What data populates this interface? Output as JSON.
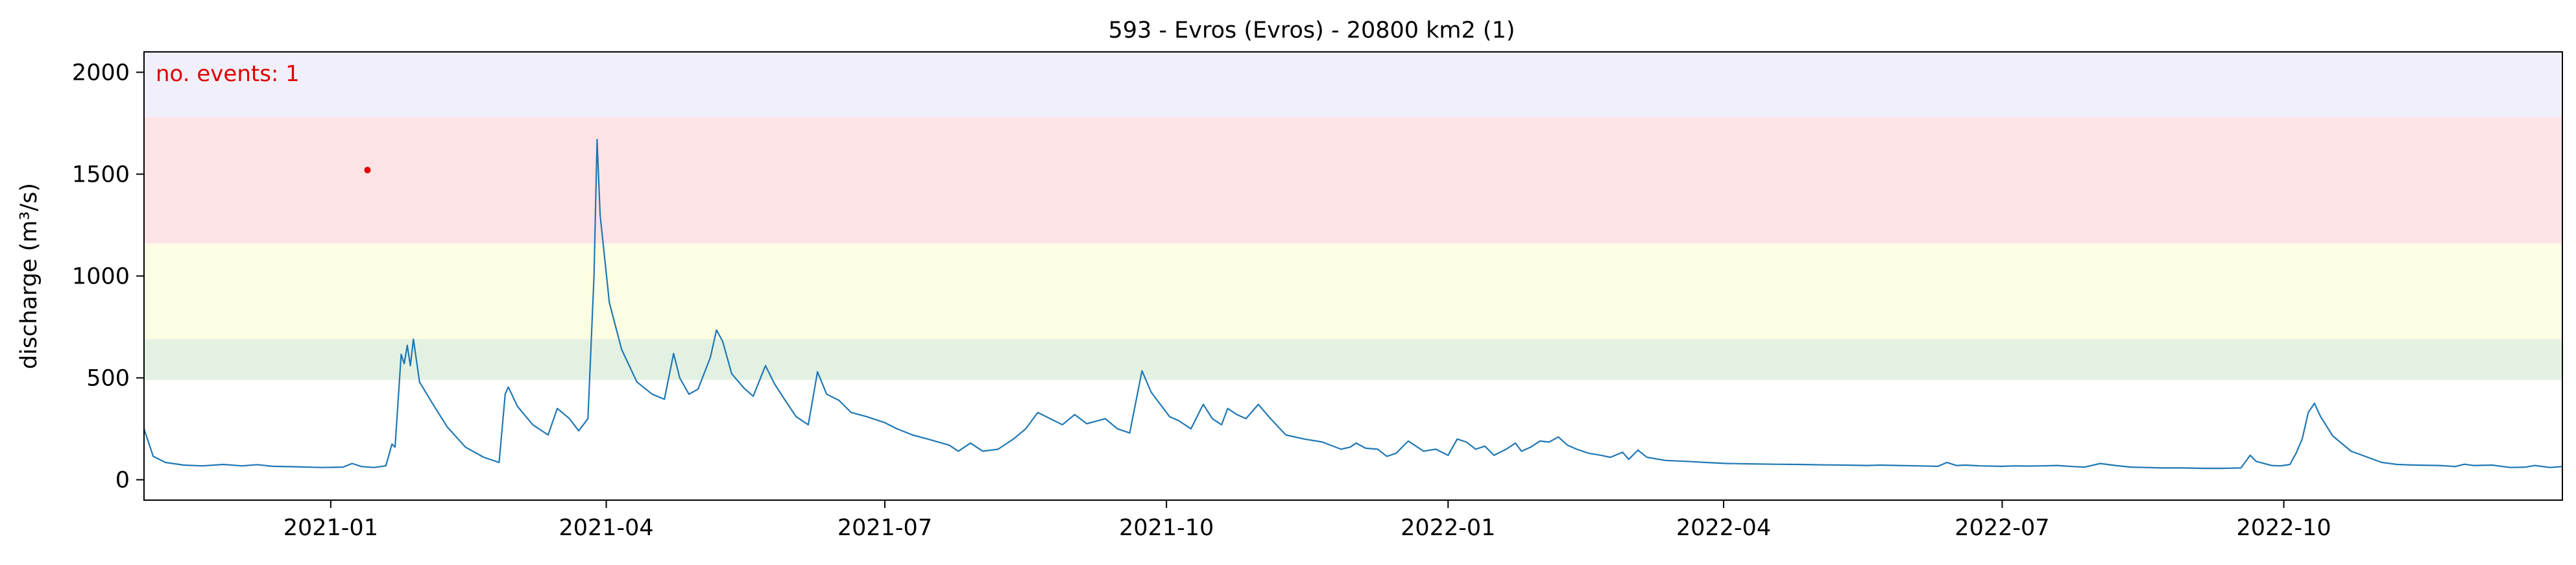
{
  "chart_data": {
    "type": "line",
    "title": "593 - Evros (Evros) - 20800 km2 (1)",
    "ylabel": "discharge (m³/s)",
    "xlabel": "",
    "annotation": "no. events: 1",
    "x_range": [
      "2020-11-01",
      "2022-12-31"
    ],
    "ylim": [
      -100,
      2100
    ],
    "y_ticks": [
      0,
      500,
      1000,
      1500,
      2000
    ],
    "x_ticks": [
      {
        "date": "2021-01-01",
        "label": "2021-01"
      },
      {
        "date": "2021-04-01",
        "label": "2021-04"
      },
      {
        "date": "2021-07-01",
        "label": "2021-07"
      },
      {
        "date": "2021-10-01",
        "label": "2021-10"
      },
      {
        "date": "2022-01-01",
        "label": "2022-01"
      },
      {
        "date": "2022-04-01",
        "label": "2022-04"
      },
      {
        "date": "2022-07-01",
        "label": "2022-07"
      },
      {
        "date": "2022-10-01",
        "label": "2022-10"
      }
    ],
    "bands": [
      {
        "from": 490,
        "to": 690,
        "color": "#e3f1e3"
      },
      {
        "from": 690,
        "to": 1160,
        "color": "#fdfde3"
      },
      {
        "from": 1160,
        "to": 1780,
        "color": "#fde3e6"
      },
      {
        "from": 1780,
        "to": 2100,
        "color": "#f1effa"
      }
    ],
    "colors": {
      "line": "#1f77b4",
      "event": "#e00000",
      "annotation": "#e00000"
    },
    "events": [
      {
        "x": "2021-01-13",
        "y": 1520
      }
    ],
    "series": [
      {
        "points": [
          [
            "2020-11-01",
            250
          ],
          [
            "2020-11-04",
            115
          ],
          [
            "2020-11-08",
            85
          ],
          [
            "2020-11-14",
            72
          ],
          [
            "2020-11-20",
            68
          ],
          [
            "2020-11-27",
            75
          ],
          [
            "2020-12-03",
            68
          ],
          [
            "2020-12-08",
            74
          ],
          [
            "2020-12-13",
            66
          ],
          [
            "2020-12-20",
            64
          ],
          [
            "2020-12-29",
            60
          ],
          [
            "2021-01-05",
            62
          ],
          [
            "2021-01-08",
            80
          ],
          [
            "2021-01-11",
            65
          ],
          [
            "2021-01-15",
            60
          ],
          [
            "2021-01-19",
            68
          ],
          [
            "2021-01-21",
            175
          ],
          [
            "2021-01-22",
            160
          ],
          [
            "2021-01-24",
            615
          ],
          [
            "2021-01-25",
            570
          ],
          [
            "2021-01-26",
            660
          ],
          [
            "2021-01-27",
            560
          ],
          [
            "2021-01-28",
            690
          ],
          [
            "2021-01-30",
            480
          ],
          [
            "2021-02-03",
            380
          ],
          [
            "2021-02-08",
            260
          ],
          [
            "2021-02-14",
            160
          ],
          [
            "2021-02-20",
            110
          ],
          [
            "2021-02-25",
            85
          ],
          [
            "2021-02-27",
            420
          ],
          [
            "2021-02-28",
            455
          ],
          [
            "2021-03-03",
            360
          ],
          [
            "2021-03-08",
            270
          ],
          [
            "2021-03-13",
            220
          ],
          [
            "2021-03-16",
            350
          ],
          [
            "2021-03-20",
            300
          ],
          [
            "2021-03-23",
            240
          ],
          [
            "2021-03-26",
            300
          ],
          [
            "2021-03-28",
            1000
          ],
          [
            "2021-03-29",
            1670
          ],
          [
            "2021-03-30",
            1300
          ],
          [
            "2021-04-02",
            870
          ],
          [
            "2021-04-06",
            640
          ],
          [
            "2021-04-11",
            480
          ],
          [
            "2021-04-16",
            420
          ],
          [
            "2021-04-20",
            395
          ],
          [
            "2021-04-23",
            620
          ],
          [
            "2021-04-25",
            500
          ],
          [
            "2021-04-28",
            420
          ],
          [
            "2021-05-01",
            445
          ],
          [
            "2021-05-05",
            600
          ],
          [
            "2021-05-07",
            735
          ],
          [
            "2021-05-09",
            680
          ],
          [
            "2021-05-12",
            520
          ],
          [
            "2021-05-16",
            450
          ],
          [
            "2021-05-19",
            410
          ],
          [
            "2021-05-23",
            560
          ],
          [
            "2021-05-26",
            470
          ],
          [
            "2021-05-29",
            400
          ],
          [
            "2021-06-02",
            310
          ],
          [
            "2021-06-06",
            270
          ],
          [
            "2021-06-09",
            530
          ],
          [
            "2021-06-12",
            420
          ],
          [
            "2021-06-16",
            390
          ],
          [
            "2021-06-20",
            330
          ],
          [
            "2021-06-25",
            310
          ],
          [
            "2021-07-01",
            280
          ],
          [
            "2021-07-05",
            250
          ],
          [
            "2021-07-10",
            220
          ],
          [
            "2021-07-15",
            200
          ],
          [
            "2021-07-22",
            170
          ],
          [
            "2021-07-25",
            140
          ],
          [
            "2021-07-29",
            180
          ],
          [
            "2021-08-02",
            140
          ],
          [
            "2021-08-07",
            150
          ],
          [
            "2021-08-12",
            200
          ],
          [
            "2021-08-16",
            250
          ],
          [
            "2021-08-20",
            330
          ],
          [
            "2021-08-24",
            300
          ],
          [
            "2021-08-28",
            270
          ],
          [
            "2021-09-01",
            320
          ],
          [
            "2021-09-05",
            275
          ],
          [
            "2021-09-11",
            300
          ],
          [
            "2021-09-15",
            250
          ],
          [
            "2021-09-19",
            230
          ],
          [
            "2021-09-23",
            535
          ],
          [
            "2021-09-26",
            430
          ],
          [
            "2021-10-02",
            310
          ],
          [
            "2021-10-05",
            290
          ],
          [
            "2021-10-09",
            250
          ],
          [
            "2021-10-13",
            370
          ],
          [
            "2021-10-16",
            300
          ],
          [
            "2021-10-19",
            270
          ],
          [
            "2021-10-21",
            350
          ],
          [
            "2021-10-24",
            320
          ],
          [
            "2021-10-27",
            300
          ],
          [
            "2021-10-31",
            370
          ],
          [
            "2021-11-04",
            300
          ],
          [
            "2021-11-09",
            220
          ],
          [
            "2021-11-15",
            200
          ],
          [
            "2021-11-21",
            185
          ],
          [
            "2021-11-27",
            150
          ],
          [
            "2021-11-30",
            160
          ],
          [
            "2021-12-02",
            180
          ],
          [
            "2021-12-05",
            155
          ],
          [
            "2021-12-09",
            150
          ],
          [
            "2021-12-12",
            115
          ],
          [
            "2021-12-15",
            130
          ],
          [
            "2021-12-19",
            190
          ],
          [
            "2021-12-21",
            170
          ],
          [
            "2021-12-24",
            140
          ],
          [
            "2021-12-28",
            150
          ],
          [
            "2022-01-01",
            120
          ],
          [
            "2022-01-04",
            200
          ],
          [
            "2022-01-07",
            185
          ],
          [
            "2022-01-10",
            150
          ],
          [
            "2022-01-13",
            165
          ],
          [
            "2022-01-16",
            120
          ],
          [
            "2022-01-20",
            150
          ],
          [
            "2022-01-23",
            180
          ],
          [
            "2022-01-25",
            140
          ],
          [
            "2022-01-28",
            160
          ],
          [
            "2022-01-31",
            190
          ],
          [
            "2022-02-03",
            185
          ],
          [
            "2022-02-06",
            210
          ],
          [
            "2022-02-09",
            170
          ],
          [
            "2022-02-12",
            150
          ],
          [
            "2022-02-16",
            130
          ],
          [
            "2022-02-20",
            120
          ],
          [
            "2022-02-23",
            110
          ],
          [
            "2022-02-27",
            135
          ],
          [
            "2022-03-01",
            100
          ],
          [
            "2022-03-04",
            145
          ],
          [
            "2022-03-07",
            110
          ],
          [
            "2022-03-13",
            95
          ],
          [
            "2022-03-20",
            90
          ],
          [
            "2022-03-26",
            85
          ],
          [
            "2022-04-02",
            80
          ],
          [
            "2022-04-10",
            78
          ],
          [
            "2022-04-18",
            76
          ],
          [
            "2022-04-26",
            75
          ],
          [
            "2022-05-04",
            73
          ],
          [
            "2022-05-11",
            72
          ],
          [
            "2022-05-18",
            70
          ],
          [
            "2022-05-22",
            72
          ],
          [
            "2022-05-28",
            70
          ],
          [
            "2022-06-04",
            68
          ],
          [
            "2022-06-10",
            66
          ],
          [
            "2022-06-13",
            85
          ],
          [
            "2022-06-16",
            70
          ],
          [
            "2022-06-19",
            72
          ],
          [
            "2022-06-24",
            68
          ],
          [
            "2022-07-01",
            66
          ],
          [
            "2022-07-05",
            68
          ],
          [
            "2022-07-09",
            67
          ],
          [
            "2022-07-14",
            68
          ],
          [
            "2022-07-19",
            70
          ],
          [
            "2022-07-24",
            65
          ],
          [
            "2022-07-28",
            62
          ],
          [
            "2022-08-02",
            80
          ],
          [
            "2022-08-07",
            70
          ],
          [
            "2022-08-12",
            62
          ],
          [
            "2022-08-17",
            60
          ],
          [
            "2022-08-22",
            58
          ],
          [
            "2022-08-29",
            58
          ],
          [
            "2022-09-05",
            56
          ],
          [
            "2022-09-11",
            56
          ],
          [
            "2022-09-17",
            58
          ],
          [
            "2022-09-20",
            120
          ],
          [
            "2022-09-22",
            90
          ],
          [
            "2022-09-27",
            70
          ],
          [
            "2022-09-30",
            68
          ],
          [
            "2022-10-03",
            75
          ],
          [
            "2022-10-05",
            130
          ],
          [
            "2022-10-07",
            200
          ],
          [
            "2022-10-09",
            330
          ],
          [
            "2022-10-11",
            375
          ],
          [
            "2022-10-13",
            310
          ],
          [
            "2022-10-17",
            215
          ],
          [
            "2022-10-23",
            140
          ],
          [
            "2022-11-02",
            85
          ],
          [
            "2022-11-07",
            75
          ],
          [
            "2022-11-13",
            72
          ],
          [
            "2022-11-21",
            70
          ],
          [
            "2022-11-26",
            65
          ],
          [
            "2022-11-29",
            76
          ],
          [
            "2022-12-02",
            70
          ],
          [
            "2022-12-08",
            72
          ],
          [
            "2022-12-14",
            60
          ],
          [
            "2022-12-19",
            62
          ],
          [
            "2022-12-22",
            70
          ],
          [
            "2022-12-27",
            60
          ],
          [
            "2022-12-31",
            65
          ]
        ]
      }
    ]
  }
}
